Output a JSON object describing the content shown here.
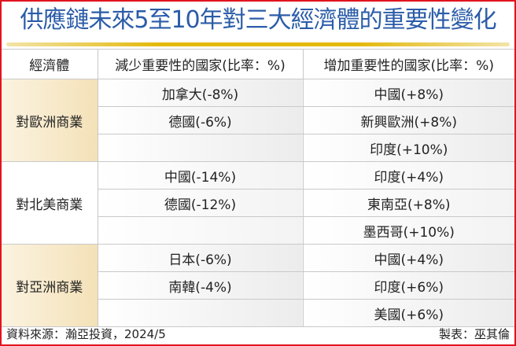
{
  "title": "供應鏈未來5至10年對三大經濟體的重要性變化",
  "headers": [
    "經濟體",
    "減少重要性的國家(比率：%)",
    "增加重要性的國家(比率：%)"
  ],
  "groups": [
    {
      "name": "對歐洲商業",
      "decrease": [
        "加拿大(-8%)",
        "德國(-6%)",
        ""
      ],
      "increase": [
        "中國(+8%)",
        "新興歐洲(+8%)",
        "印度(+10%)"
      ]
    },
    {
      "name": "對北美商業",
      "decrease": [
        "中國(-14%)",
        "德國(-12%)",
        ""
      ],
      "increase": [
        "印度(+4%)",
        "東南亞(+8%)",
        "墨西哥(+10%)"
      ]
    },
    {
      "name": "對亞洲商業",
      "decrease": [
        "日本(-6%)",
        "南韓(-4%)",
        ""
      ],
      "increase": [
        "中國(+4%)",
        "印度(+6%)",
        "美國(+6%)"
      ]
    }
  ],
  "footer": {
    "source": "資料來源：瀚亞投資，2024/5",
    "credit": "製表：巫其倫"
  },
  "colors": {
    "title": "#2b5ca8",
    "border": "#e0141e",
    "accent_rule": "#e3b90c"
  }
}
